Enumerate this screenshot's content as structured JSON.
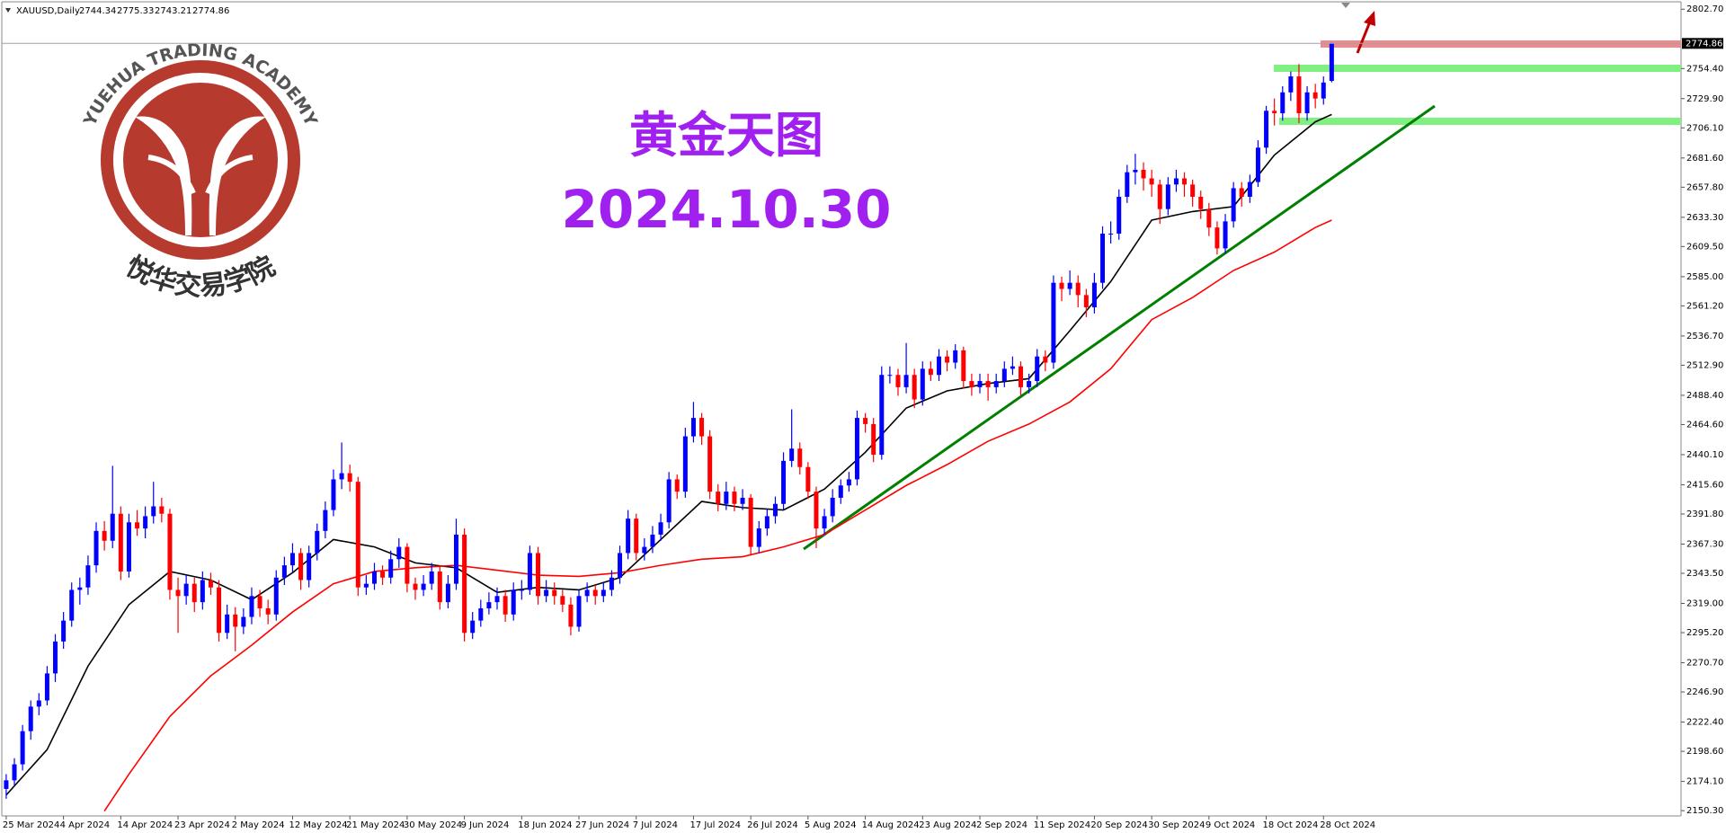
{
  "chart_data": {
    "type": "candlestick",
    "symbol": "XAUUSD,Daily",
    "title": "黄金天图",
    "subtitle": "2024.10.30",
    "logo_text": "YUEHUA TRADING ACADEMY",
    "logo_text_cn": "悦华交易学院",
    "up_color": "#0000ff",
    "down_color": "#ff0000",
    "xlim": [
      -0.54,
      204.7
    ],
    "ylim": [
      2146,
      2808
    ],
    "xticks": [
      {
        "value": 0,
        "label": "25 Mar 2024"
      },
      {
        "value": 7,
        "label": "4 Apr 2024"
      },
      {
        "value": 14,
        "label": "14 Apr 2024"
      },
      {
        "value": 21,
        "label": "23 Apr 2024"
      },
      {
        "value": 28,
        "label": "2 May 2024"
      },
      {
        "value": 35,
        "label": "12 May 2024"
      },
      {
        "value": 42,
        "label": "21 May 2024"
      },
      {
        "value": 49,
        "label": "30 May 2024"
      },
      {
        "value": 56,
        "label": "9 Jun 2024"
      },
      {
        "value": 63,
        "label": "18 Jun 2024"
      },
      {
        "value": 70,
        "label": "27 Jun 2024"
      },
      {
        "value": 77,
        "label": "7 Jul 2024"
      },
      {
        "value": 84,
        "label": "17 Jul 2024"
      },
      {
        "value": 91,
        "label": "26 Jul 2024"
      },
      {
        "value": 98,
        "label": "5 Aug 2024"
      },
      {
        "value": 105,
        "label": "14 Aug 2024"
      },
      {
        "value": 112,
        "label": "23 Aug 2024"
      },
      {
        "value": 119,
        "label": "2 Sep 2024"
      },
      {
        "value": 126,
        "label": "11 Sep 2024"
      },
      {
        "value": 133,
        "label": "20 Sep 2024"
      },
      {
        "value": 140,
        "label": "30 Sep 2024"
      },
      {
        "value": 147,
        "label": "9 Oct 2024"
      },
      {
        "value": 154,
        "label": "18 Oct 2024"
      },
      {
        "value": 161,
        "label": "28 Oct 2024"
      }
    ],
    "yticks": [
      {
        "value": 2802.7,
        "label": "2802.70"
      },
      {
        "value": 2754.4,
        "label": "2754.40"
      },
      {
        "value": 2729.9,
        "label": "2729.90"
      },
      {
        "value": 2706.1,
        "label": "2706.10"
      },
      {
        "value": 2681.6,
        "label": "2681.60"
      },
      {
        "value": 2657.8,
        "label": "2657.80"
      },
      {
        "value": 2633.3,
        "label": "2633.30"
      },
      {
        "value": 2609.5,
        "label": "2609.50"
      },
      {
        "value": 2585,
        "label": "2585.00"
      },
      {
        "value": 2561.2,
        "label": "2561.20"
      },
      {
        "value": 2536.7,
        "label": "2536.70"
      },
      {
        "value": 2512.9,
        "label": "2512.90"
      },
      {
        "value": 2488.4,
        "label": "2488.40"
      },
      {
        "value": 2464.6,
        "label": "2464.60"
      },
      {
        "value": 2440.1,
        "label": "2440.10"
      },
      {
        "value": 2415.6,
        "label": "2415.60"
      },
      {
        "value": 2391.8,
        "label": "2391.80"
      },
      {
        "value": 2367.3,
        "label": "2367.30"
      },
      {
        "value": 2343.5,
        "label": "2343.50"
      },
      {
        "value": 2319,
        "label": "2319.00"
      },
      {
        "value": 2295.2,
        "label": "2295.20"
      },
      {
        "value": 2270.7,
        "label": "2270.70"
      },
      {
        "value": 2246.9,
        "label": "2246.90"
      },
      {
        "value": 2222.4,
        "label": "2222.40"
      },
      {
        "value": 2198.6,
        "label": "2198.60"
      },
      {
        "value": 2174.1,
        "label": "2174.10"
      },
      {
        "value": 2150.3,
        "label": "2150.30"
      }
    ],
    "candles": [
      [
        2168,
        2180,
        2160,
        2175
      ],
      [
        2175,
        2193,
        2170,
        2188
      ],
      [
        2188,
        2220,
        2183,
        2215
      ],
      [
        2215,
        2240,
        2208,
        2235
      ],
      [
        2235,
        2246,
        2228,
        2240
      ],
      [
        2240,
        2268,
        2236,
        2262
      ],
      [
        2262,
        2294,
        2255,
        2288
      ],
      [
        2288,
        2312,
        2282,
        2305
      ],
      [
        2305,
        2336,
        2300,
        2330
      ],
      [
        2330,
        2340,
        2318,
        2332
      ],
      [
        2332,
        2358,
        2326,
        2350
      ],
      [
        2350,
        2385,
        2344,
        2378
      ],
      [
        2378,
        2386,
        2362,
        2370
      ],
      [
        2370,
        2431,
        2364,
        2392
      ],
      [
        2392,
        2398,
        2338,
        2345
      ],
      [
        2345,
        2392,
        2340,
        2385
      ],
      [
        2385,
        2395,
        2374,
        2380
      ],
      [
        2380,
        2398,
        2372,
        2390
      ],
      [
        2390,
        2418,
        2384,
        2398
      ],
      [
        2398,
        2405,
        2385,
        2392
      ],
      [
        2392,
        2396,
        2322,
        2330
      ],
      [
        2330,
        2340,
        2295,
        2325
      ],
      [
        2325,
        2342,
        2318,
        2335
      ],
      [
        2335,
        2340,
        2312,
        2320
      ],
      [
        2320,
        2345,
        2314,
        2338
      ],
      [
        2338,
        2344,
        2326,
        2332
      ],
      [
        2332,
        2338,
        2288,
        2295
      ],
      [
        2295,
        2318,
        2290,
        2310
      ],
      [
        2310,
        2316,
        2280,
        2300
      ],
      [
        2300,
        2315,
        2294,
        2308
      ],
      [
        2308,
        2332,
        2302,
        2325
      ],
      [
        2325,
        2330,
        2308,
        2315
      ],
      [
        2315,
        2322,
        2302,
        2310
      ],
      [
        2310,
        2346,
        2305,
        2340
      ],
      [
        2340,
        2357,
        2334,
        2350
      ],
      [
        2350,
        2368,
        2344,
        2360
      ],
      [
        2360,
        2364,
        2330,
        2338
      ],
      [
        2338,
        2366,
        2332,
        2360
      ],
      [
        2360,
        2384,
        2354,
        2378
      ],
      [
        2378,
        2402,
        2372,
        2395
      ],
      [
        2395,
        2428,
        2390,
        2420
      ],
      [
        2420,
        2450,
        2412,
        2425
      ],
      [
        2425,
        2432,
        2410,
        2418
      ],
      [
        2418,
        2422,
        2325,
        2332
      ],
      [
        2332,
        2342,
        2326,
        2335
      ],
      [
        2335,
        2352,
        2330,
        2345
      ],
      [
        2345,
        2350,
        2334,
        2340
      ],
      [
        2340,
        2362,
        2335,
        2355
      ],
      [
        2355,
        2372,
        2348,
        2365
      ],
      [
        2365,
        2368,
        2328,
        2335
      ],
      [
        2335,
        2340,
        2322,
        2330
      ],
      [
        2330,
        2342,
        2325,
        2335
      ],
      [
        2335,
        2352,
        2330,
        2345
      ],
      [
        2345,
        2350,
        2314,
        2320
      ],
      [
        2320,
        2342,
        2315,
        2335
      ],
      [
        2335,
        2388,
        2330,
        2375
      ],
      [
        2375,
        2380,
        2288,
        2295
      ],
      [
        2295,
        2312,
        2290,
        2305
      ],
      [
        2305,
        2322,
        2300,
        2315
      ],
      [
        2315,
        2328,
        2310,
        2320
      ],
      [
        2320,
        2332,
        2314,
        2325
      ],
      [
        2325,
        2330,
        2304,
        2310
      ],
      [
        2310,
        2336,
        2305,
        2330
      ],
      [
        2330,
        2338,
        2322,
        2330
      ],
      [
        2330,
        2366,
        2326,
        2360
      ],
      [
        2360,
        2365,
        2318,
        2325
      ],
      [
        2325,
        2338,
        2320,
        2330
      ],
      [
        2330,
        2336,
        2318,
        2325
      ],
      [
        2325,
        2330,
        2312,
        2318
      ],
      [
        2318,
        2324,
        2293,
        2300
      ],
      [
        2300,
        2330,
        2296,
        2325
      ],
      [
        2325,
        2336,
        2320,
        2330
      ],
      [
        2330,
        2334,
        2318,
        2325
      ],
      [
        2325,
        2336,
        2320,
        2330
      ],
      [
        2330,
        2346,
        2325,
        2340
      ],
      [
        2340,
        2366,
        2335,
        2360
      ],
      [
        2360,
        2395,
        2355,
        2388
      ],
      [
        2388,
        2392,
        2354,
        2360
      ],
      [
        2360,
        2372,
        2354,
        2365
      ],
      [
        2365,
        2382,
        2360,
        2375
      ],
      [
        2375,
        2392,
        2370,
        2385
      ],
      [
        2385,
        2426,
        2380,
        2420
      ],
      [
        2420,
        2424,
        2404,
        2410
      ],
      [
        2410,
        2462,
        2405,
        2455
      ],
      [
        2455,
        2483,
        2450,
        2470
      ],
      [
        2470,
        2474,
        2448,
        2455
      ],
      [
        2455,
        2460,
        2404,
        2410
      ],
      [
        2410,
        2416,
        2394,
        2400
      ],
      [
        2400,
        2418,
        2395,
        2410
      ],
      [
        2410,
        2414,
        2394,
        2400
      ],
      [
        2400,
        2412,
        2395,
        2405
      ],
      [
        2405,
        2408,
        2358,
        2365
      ],
      [
        2365,
        2386,
        2360,
        2380
      ],
      [
        2380,
        2396,
        2374,
        2390
      ],
      [
        2390,
        2406,
        2384,
        2400
      ],
      [
        2400,
        2442,
        2395,
        2435
      ],
      [
        2435,
        2477,
        2430,
        2445
      ],
      [
        2445,
        2450,
        2424,
        2430
      ],
      [
        2430,
        2434,
        2404,
        2410
      ],
      [
        2410,
        2414,
        2364,
        2380
      ],
      [
        2380,
        2396,
        2375,
        2390
      ],
      [
        2390,
        2412,
        2385,
        2405
      ],
      [
        2405,
        2420,
        2400,
        2415
      ],
      [
        2415,
        2426,
        2410,
        2420
      ],
      [
        2420,
        2476,
        2415,
        2470
      ],
      [
        2470,
        2474,
        2458,
        2465
      ],
      [
        2465,
        2470,
        2434,
        2440
      ],
      [
        2440,
        2512,
        2436,
        2505
      ],
      [
        2505,
        2512,
        2498,
        2505
      ],
      [
        2505,
        2510,
        2488,
        2495
      ],
      [
        2495,
        2531,
        2490,
        2505
      ],
      [
        2505,
        2510,
        2478,
        2485
      ],
      [
        2485,
        2516,
        2480,
        2510
      ],
      [
        2510,
        2516,
        2500,
        2505
      ],
      [
        2505,
        2526,
        2500,
        2520
      ],
      [
        2520,
        2525,
        2508,
        2515
      ],
      [
        2515,
        2530,
        2510,
        2525
      ],
      [
        2525,
        2528,
        2494,
        2500
      ],
      [
        2500,
        2506,
        2488,
        2495
      ],
      [
        2495,
        2506,
        2490,
        2500
      ],
      [
        2500,
        2506,
        2484,
        2495
      ],
      [
        2495,
        2506,
        2490,
        2500
      ],
      [
        2500,
        2516,
        2495,
        2510
      ],
      [
        2510,
        2520,
        2505,
        2512
      ],
      [
        2512,
        2516,
        2488,
        2495
      ],
      [
        2495,
        2506,
        2490,
        2500
      ],
      [
        2500,
        2526,
        2495,
        2520
      ],
      [
        2520,
        2525,
        2508,
        2515
      ],
      [
        2515,
        2586,
        2510,
        2580
      ],
      [
        2580,
        2585,
        2565,
        2575
      ],
      [
        2575,
        2590,
        2570,
        2580
      ],
      [
        2580,
        2586,
        2560,
        2570
      ],
      [
        2570,
        2575,
        2552,
        2560
      ],
      [
        2560,
        2588,
        2555,
        2580
      ],
      [
        2580,
        2626,
        2575,
        2620
      ],
      [
        2620,
        2630,
        2612,
        2620
      ],
      [
        2620,
        2656,
        2615,
        2650
      ],
      [
        2650,
        2676,
        2645,
        2670
      ],
      [
        2670,
        2685,
        2660,
        2672
      ],
      [
        2672,
        2678,
        2655,
        2665
      ],
      [
        2665,
        2672,
        2650,
        2660
      ],
      [
        2660,
        2664,
        2628,
        2640
      ],
      [
        2640,
        2666,
        2635,
        2660
      ],
      [
        2660,
        2672,
        2654,
        2665
      ],
      [
        2665,
        2670,
        2650,
        2660
      ],
      [
        2660,
        2664,
        2642,
        2650
      ],
      [
        2650,
        2655,
        2632,
        2640
      ],
      [
        2640,
        2645,
        2618,
        2625
      ],
      [
        2625,
        2630,
        2603,
        2608
      ],
      [
        2608,
        2636,
        2604,
        2630
      ],
      [
        2630,
        2662,
        2625,
        2657
      ],
      [
        2657,
        2662,
        2642,
        2650
      ],
      [
        2650,
        2668,
        2645,
        2662
      ],
      [
        2662,
        2696,
        2658,
        2690
      ],
      [
        2690,
        2724,
        2685,
        2720
      ],
      [
        2720,
        2730,
        2708,
        2718
      ],
      [
        2718,
        2740,
        2712,
        2735
      ],
      [
        2735,
        2752,
        2728,
        2748
      ],
      [
        2748,
        2758,
        2710,
        2718
      ],
      [
        2718,
        2740,
        2712,
        2735
      ],
      [
        2735,
        2742,
        2722,
        2730
      ],
      [
        2730,
        2748,
        2725,
        2743
      ],
      [
        2744.34,
        2775.33,
        2743.21,
        2774.86
      ]
    ],
    "moving_averages": [
      {
        "color": "#000000",
        "x": [
          0,
          5,
          10,
          15,
          20,
          25,
          30,
          35,
          40,
          45,
          50,
          55,
          60,
          65,
          70,
          75,
          80,
          85,
          90,
          95,
          100,
          105,
          110,
          115,
          120,
          125,
          130,
          135,
          140,
          145,
          150,
          155,
          160,
          162
        ],
        "values": [
          2163,
          2200,
          2268,
          2318,
          2345,
          2338,
          2322,
          2344,
          2371,
          2365,
          2352,
          2348,
          2328,
          2332,
          2330,
          2340,
          2371,
          2402,
          2397,
          2395,
          2412,
          2442,
          2478,
          2492,
          2498,
          2502,
          2541,
          2581,
          2631,
          2638,
          2642,
          2684,
          2711,
          2717
        ]
      },
      {
        "color": "#ff0000",
        "x": [
          12,
          15,
          20,
          25,
          30,
          35,
          40,
          45,
          50,
          55,
          60,
          65,
          70,
          75,
          80,
          85,
          90,
          95,
          100,
          105,
          110,
          115,
          120,
          125,
          130,
          135,
          140,
          145,
          150,
          155,
          160,
          162
        ],
        "values": [
          2150,
          2180,
          2227,
          2260,
          2285,
          2312,
          2335,
          2345,
          2348,
          2350,
          2346,
          2342,
          2341,
          2344,
          2350,
          2355,
          2357,
          2365,
          2375,
          2395,
          2415,
          2432,
          2451,
          2465,
          2483,
          2510,
          2550,
          2568,
          2590,
          2605,
          2625,
          2631
        ]
      }
    ]
  }
}
